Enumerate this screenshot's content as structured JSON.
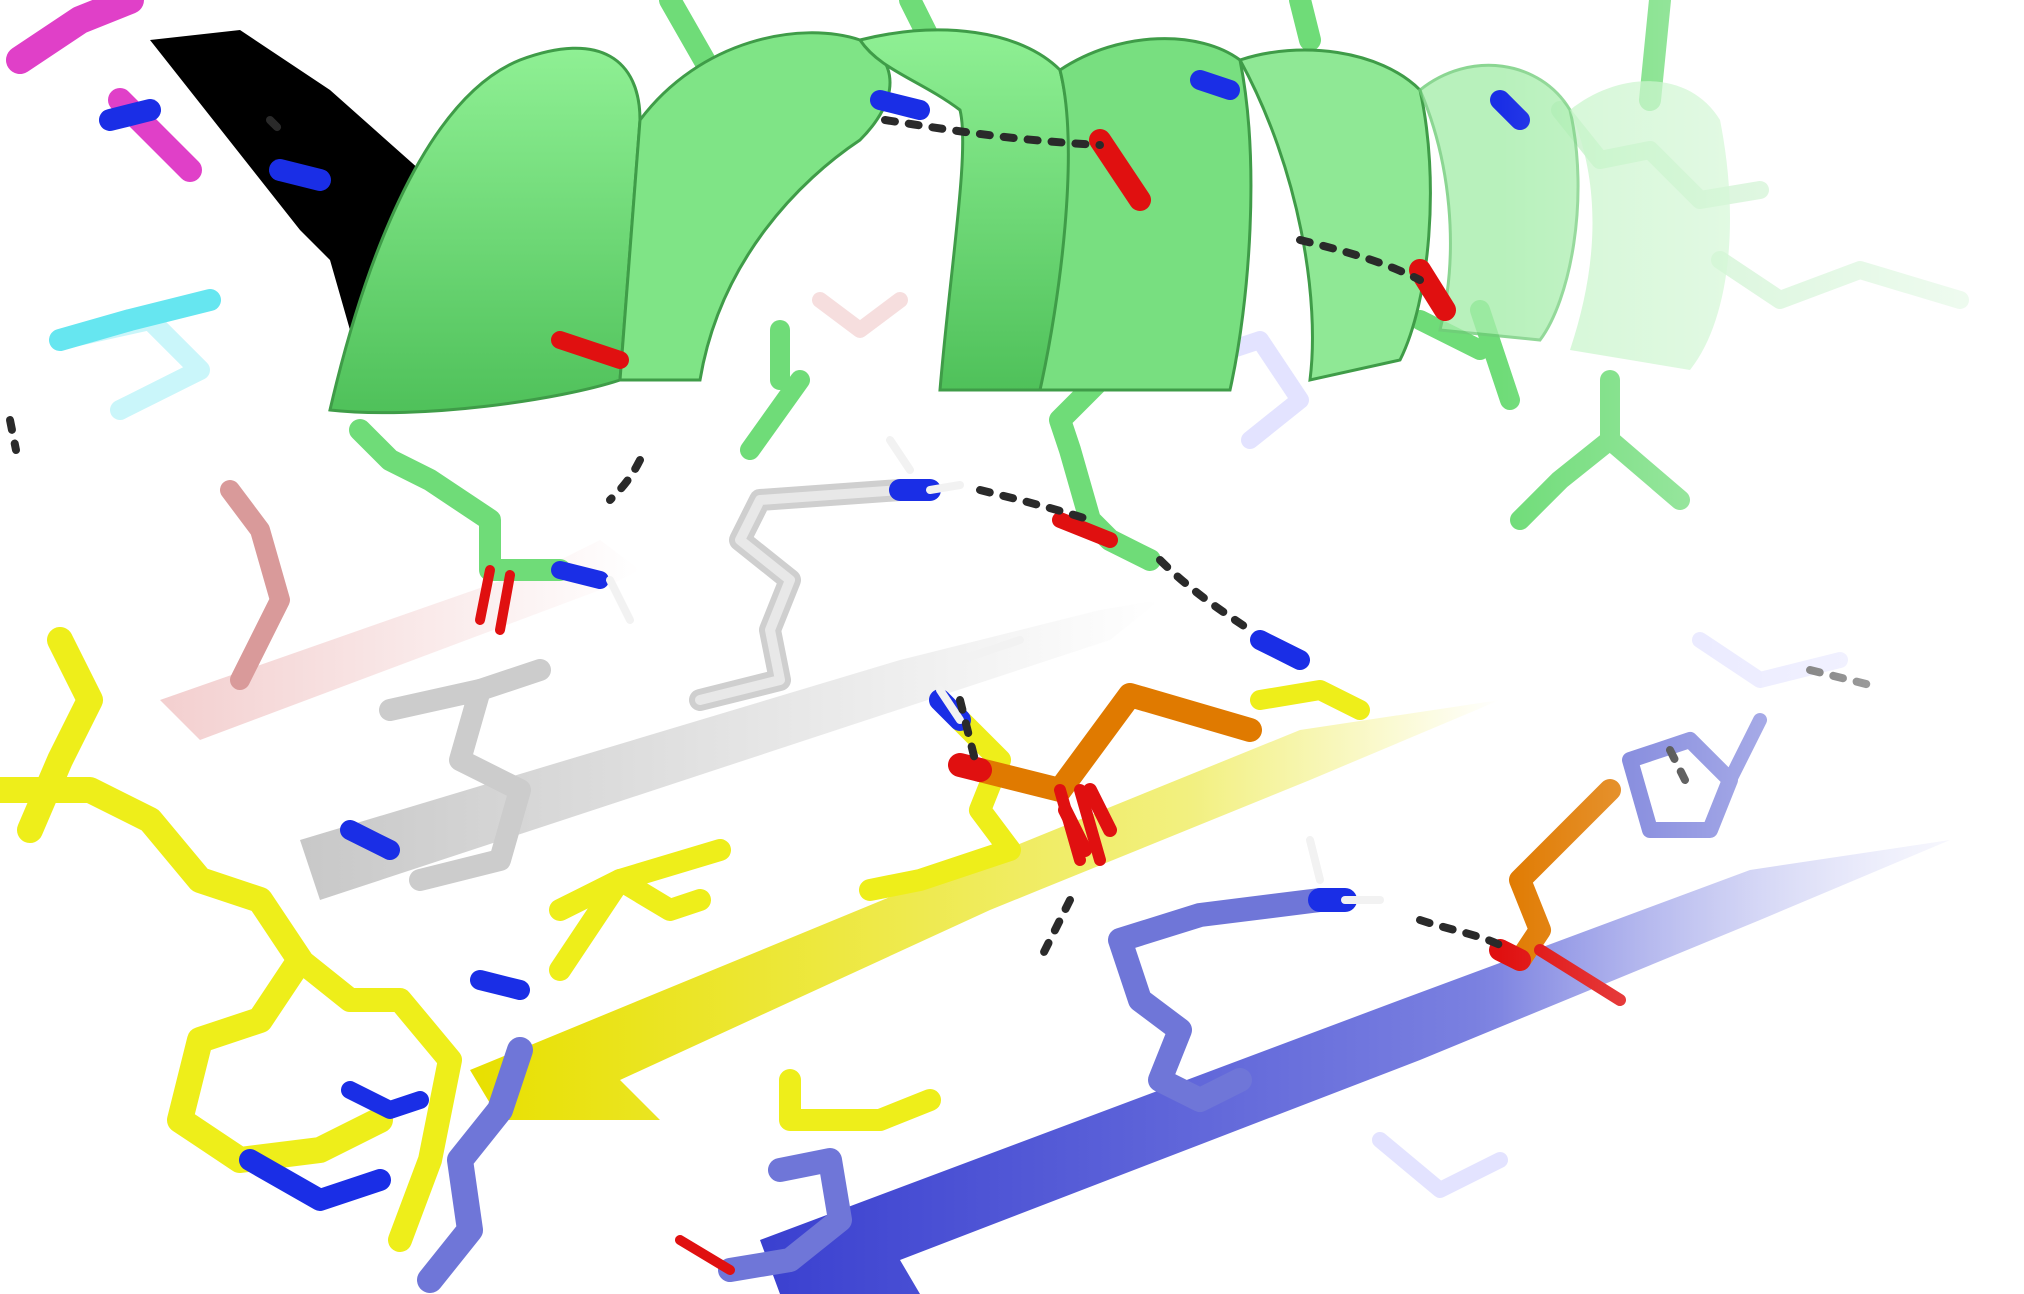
{
  "scene": {
    "kind": "molecular-render",
    "background": "#ffffff",
    "colors": {
      "helix": "#6fdc78",
      "helix_dark": "#3f9c48",
      "helix_inner": "#000000",
      "strand_blue": "#6f76d8",
      "strand_yellow": "#eeee1a",
      "strand_gray": "#d7d7d7",
      "strand_red": "#e6b3b3",
      "ligand_orange": "#e07a00",
      "oxygen": "#e01010",
      "nitrogen": "#1a2ee6",
      "hydrogen": "#f2f2f2",
      "magenta": "#e040c8",
      "cyan": "#66e6f0",
      "hbond": "#2a2a2a"
    },
    "elements": [
      "alpha-helix-ribbon",
      "beta-sheet-blue",
      "beta-sheet-yellow",
      "beta-sheet-gray",
      "beta-sheet-red",
      "lysine-gray-sidechain",
      "lysine-blue-sidechain",
      "glutamate-sidechain",
      "orange-ligand-1",
      "orange-ligand-2",
      "histidine-ring",
      "hydrogen-bond-dashes"
    ]
  }
}
